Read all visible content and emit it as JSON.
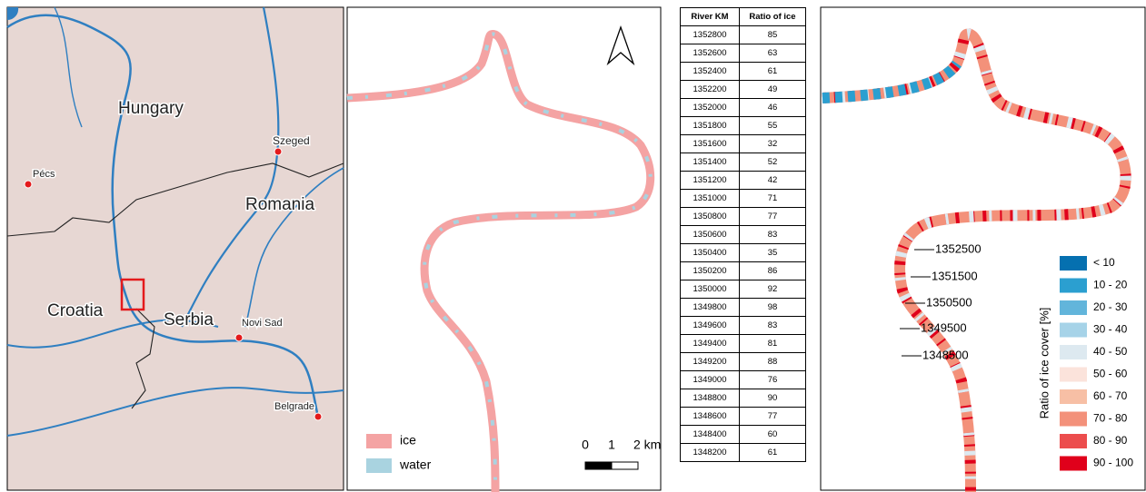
{
  "map_overview": {
    "labels": [
      "Hungary",
      "Szeged",
      "Pécs",
      "Romania",
      "Croatia",
      "Serbia",
      "Novi Sad",
      "Belgrade"
    ]
  },
  "ice_map": {
    "legend": [
      {
        "label": "ice",
        "color": "#f4a3a3"
      },
      {
        "label": "water",
        "color": "#a9d3e0"
      }
    ],
    "scale": [
      "0",
      "1",
      "2 km"
    ]
  },
  "table": {
    "columns": [
      "River KM",
      "Ratio of ice"
    ],
    "rows": [
      [
        1352800,
        85
      ],
      [
        1352600,
        63
      ],
      [
        1352400,
        61
      ],
      [
        1352200,
        49
      ],
      [
        1352000,
        46
      ],
      [
        1351800,
        55
      ],
      [
        1351600,
        32
      ],
      [
        1351400,
        52
      ],
      [
        1351200,
        42
      ],
      [
        1351000,
        71
      ],
      [
        1350800,
        77
      ],
      [
        1350600,
        83
      ],
      [
        1350400,
        35
      ],
      [
        1350200,
        86
      ],
      [
        1350000,
        92
      ],
      [
        1349800,
        98
      ],
      [
        1349600,
        83
      ],
      [
        1349400,
        81
      ],
      [
        1349200,
        88
      ],
      [
        1349000,
        76
      ],
      [
        1348800,
        90
      ],
      [
        1348600,
        77
      ],
      [
        1348400,
        60
      ],
      [
        1348200,
        61
      ]
    ]
  },
  "ratio_map": {
    "km_labels": [
      1352500,
      1351500,
      1350500,
      1349500,
      1348500
    ],
    "legend_title": "Ratio of ice cover [%]",
    "legend": [
      {
        "label": "< 10",
        "color": "#0570b0"
      },
      {
        "label": "10 - 20",
        "color": "#2b9fd0"
      },
      {
        "label": "20 - 30",
        "color": "#62b5db"
      },
      {
        "label": "30 - 40",
        "color": "#a6d3e8"
      },
      {
        "label": "40 - 50",
        "color": "#dde9f0"
      },
      {
        "label": "50 - 60",
        "color": "#fbe3db"
      },
      {
        "label": "60 - 70",
        "color": "#f7bfa5"
      },
      {
        "label": "70 - 80",
        "color": "#f3917a"
      },
      {
        "label": "80 - 90",
        "color": "#ec4d4d"
      },
      {
        "label": "90 - 100",
        "color": "#e0001b"
      }
    ]
  }
}
